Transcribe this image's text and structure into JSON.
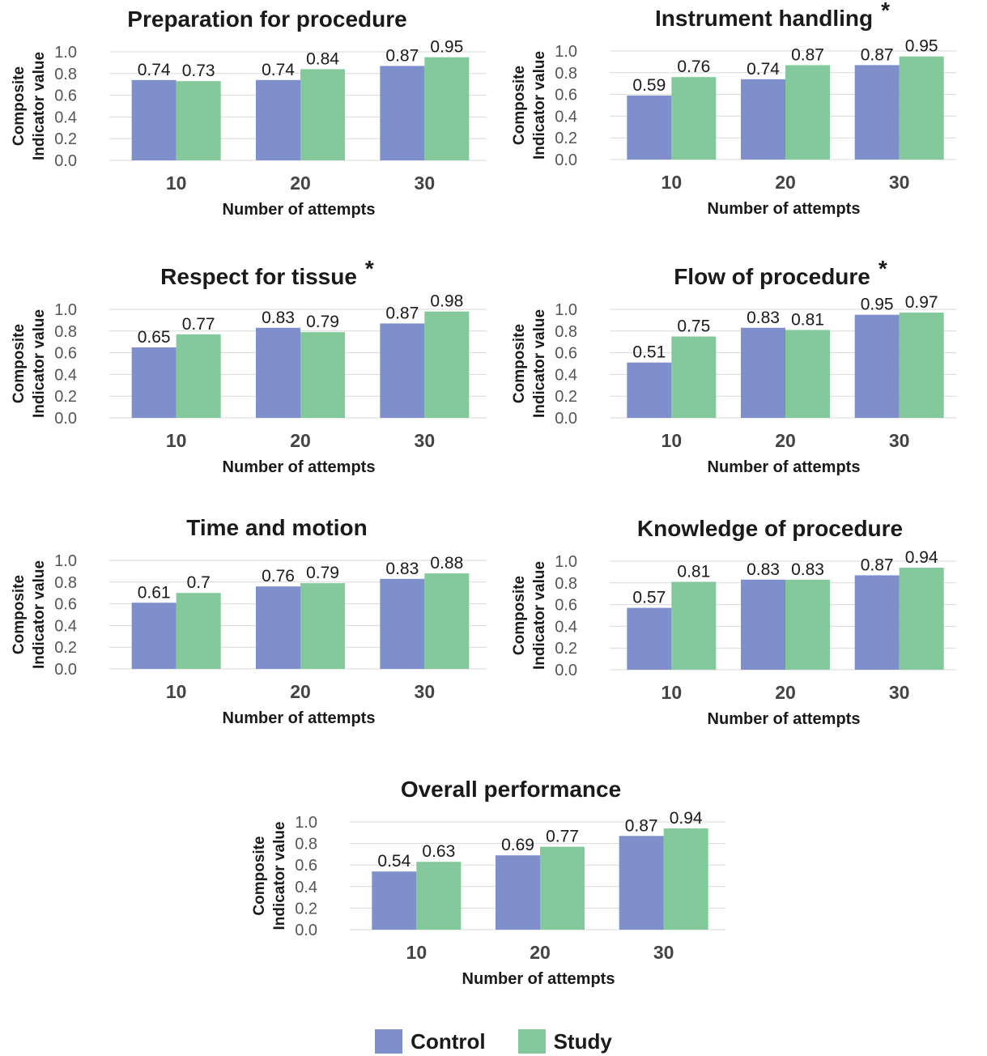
{
  "colors": {
    "control": "#7f8fcb",
    "study": "#83c99b",
    "grid": "#d9d9d9",
    "tick": "#555555",
    "text": "#1a1a1a"
  },
  "legend": {
    "control_label": "Control",
    "study_label": "Study"
  },
  "chart_data": [
    {
      "type": "bar",
      "title": "Preparation for procedure",
      "marker": "",
      "xlabel": "Number of attempts",
      "ylabel": [
        "Composite",
        "Indicator value"
      ],
      "categories": [
        "10",
        "20",
        "30"
      ],
      "series": [
        {
          "name": "Control",
          "values": [
            0.74,
            0.74,
            0.87
          ]
        },
        {
          "name": "Study",
          "values": [
            0.73,
            0.84,
            0.95
          ]
        }
      ],
      "ylim": [
        0,
        1.0
      ],
      "yticks": [
        "0.0",
        "0.2",
        "0.4",
        "0.6",
        "0.8",
        "1.0"
      ],
      "data_labels": [
        [
          "0.74",
          "0.74",
          "0.87"
        ],
        [
          "0.73",
          "0.84",
          "0.95"
        ]
      ]
    },
    {
      "type": "bar",
      "title": "Instrument handling",
      "marker": "*",
      "xlabel": "Number of attempts",
      "ylabel": [
        "Composite",
        "Indicator value"
      ],
      "categories": [
        "10",
        "20",
        "30"
      ],
      "series": [
        {
          "name": "Control",
          "values": [
            0.59,
            0.74,
            0.87
          ]
        },
        {
          "name": "Study",
          "values": [
            0.76,
            0.87,
            0.95
          ]
        }
      ],
      "ylim": [
        0,
        1.0
      ],
      "yticks": [
        "0.0",
        "0.2",
        "0.4",
        "0.6",
        "0.8",
        "1.0"
      ],
      "data_labels": [
        [
          "0.59",
          "0.74",
          "0.87"
        ],
        [
          "0.76",
          "0.87",
          "0.95"
        ]
      ]
    },
    {
      "type": "bar",
      "title": "Respect for tissue",
      "marker": "*",
      "xlabel": "Number of attempts",
      "ylabel": [
        "Composite",
        "Indicator value"
      ],
      "categories": [
        "10",
        "20",
        "30"
      ],
      "series": [
        {
          "name": "Control",
          "values": [
            0.65,
            0.83,
            0.87
          ]
        },
        {
          "name": "Study",
          "values": [
            0.77,
            0.79,
            0.98
          ]
        }
      ],
      "ylim": [
        0,
        1.0
      ],
      "yticks": [
        "0.0",
        "0.2",
        "0.4",
        "0.6",
        "0.8",
        "1.0"
      ],
      "data_labels": [
        [
          "0.65",
          "0.83",
          "0.87"
        ],
        [
          "0.77",
          "0.79",
          "0.98"
        ]
      ]
    },
    {
      "type": "bar",
      "title": "Flow of procedure",
      "marker": "*",
      "xlabel": "Number of attempts",
      "ylabel": [
        "Composite",
        "Indicator value"
      ],
      "categories": [
        "10",
        "20",
        "30"
      ],
      "series": [
        {
          "name": "Control",
          "values": [
            0.51,
            0.83,
            0.95
          ]
        },
        {
          "name": "Study",
          "values": [
            0.75,
            0.81,
            0.97
          ]
        }
      ],
      "ylim": [
        0,
        1.0
      ],
      "yticks": [
        "0.0",
        "0.2",
        "0.4",
        "0.6",
        "0.8",
        "1.0"
      ],
      "data_labels": [
        [
          "0.51",
          "0.83",
          "0.95"
        ],
        [
          "0.75",
          "0.81",
          "0.97"
        ]
      ]
    },
    {
      "type": "bar",
      "title": "Time and motion",
      "marker": "",
      "xlabel": "Number of attempts",
      "ylabel": [
        "Composite",
        "Indicator value"
      ],
      "categories": [
        "10",
        "20",
        "30"
      ],
      "series": [
        {
          "name": "Control",
          "values": [
            0.61,
            0.76,
            0.83
          ]
        },
        {
          "name": "Study",
          "values": [
            0.7,
            0.79,
            0.88
          ]
        }
      ],
      "ylim": [
        0,
        1.0
      ],
      "yticks": [
        "0.0",
        "0.2",
        "0.4",
        "0.6",
        "0.8",
        "1.0"
      ],
      "data_labels": [
        [
          "0.61",
          "0.76",
          "0.83"
        ],
        [
          "0.7",
          "0.79",
          "0.88"
        ]
      ]
    },
    {
      "type": "bar",
      "title": "Knowledge of procedure",
      "marker": "",
      "xlabel": "Number of attempts",
      "ylabel": [
        "Composite",
        "Indicator value"
      ],
      "categories": [
        "10",
        "20",
        "30"
      ],
      "series": [
        {
          "name": "Control",
          "values": [
            0.57,
            0.83,
            0.87
          ]
        },
        {
          "name": "Study",
          "values": [
            0.81,
            0.83,
            0.94
          ]
        }
      ],
      "ylim": [
        0,
        1.0
      ],
      "yticks": [
        "0.0",
        "0.2",
        "0.4",
        "0.6",
        "0.8",
        "1.0"
      ],
      "data_labels": [
        [
          "0.57",
          "0.83",
          "0.87"
        ],
        [
          "0.81",
          "0.83",
          "0.94"
        ]
      ]
    },
    {
      "type": "bar",
      "title": "Overall performance",
      "marker": "",
      "xlabel": "Number of attempts",
      "ylabel": [
        "Composite",
        "Indicator value"
      ],
      "categories": [
        "10",
        "20",
        "30"
      ],
      "series": [
        {
          "name": "Control",
          "values": [
            0.54,
            0.69,
            0.87
          ]
        },
        {
          "name": "Study",
          "values": [
            0.63,
            0.77,
            0.94
          ]
        }
      ],
      "ylim": [
        0,
        1.0
      ],
      "yticks": [
        "0.0",
        "0.2",
        "0.4",
        "0.6",
        "0.8",
        "1.0"
      ],
      "data_labels": [
        [
          "0.54",
          "0.69",
          "0.87"
        ],
        [
          "0.63",
          "0.77",
          "0.94"
        ]
      ]
    }
  ]
}
